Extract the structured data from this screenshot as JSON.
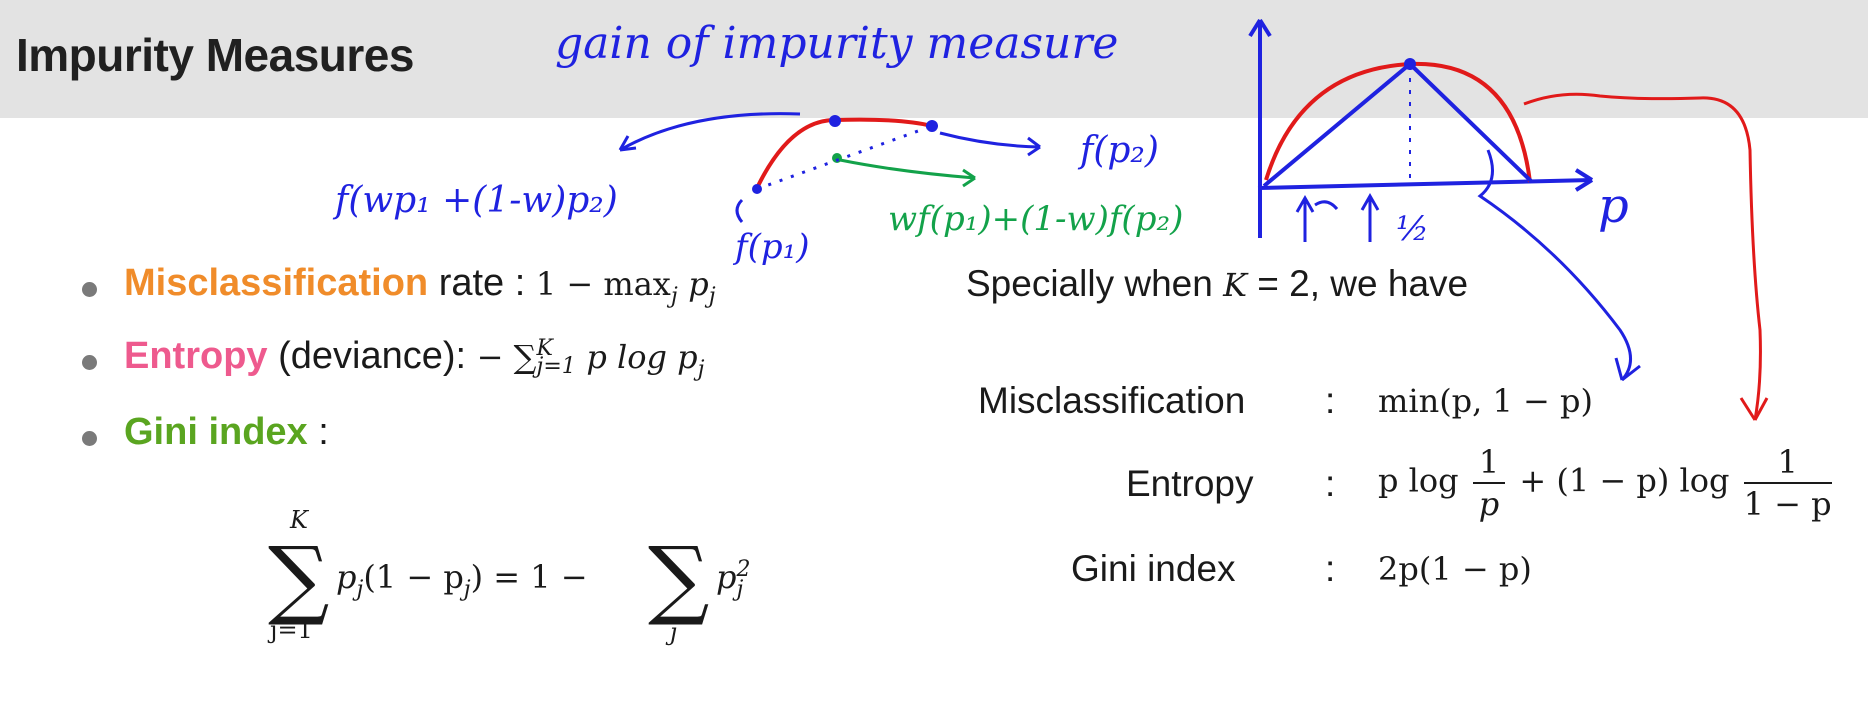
{
  "slide": {
    "title": "Impurity Measures"
  },
  "bullets": [
    {
      "keyword": "Misclassification",
      "keyword_color": "#f08c2a",
      "text": "rate :",
      "formula_prefix": "1 − max",
      "formula_sub": "j",
      "formula_tail": "p",
      "formula_tail_sub": "j"
    },
    {
      "keyword": "Entropy",
      "keyword_color": "#ee5a8e",
      "text": "(deviance):",
      "formula_prefix": "− ∑",
      "formula_sub": "j=1",
      "formula_sup": "K",
      "formula_tail": "p log p",
      "formula_tail_sub": "j"
    },
    {
      "keyword": "Gini index",
      "keyword_color": "#5aa520",
      "text": ":"
    }
  ],
  "gini_formula": {
    "sum_symbol": "∑",
    "upper": "K",
    "lower": "j=1",
    "body": "p",
    "body_sub": "j",
    "middle": "(1 − p",
    "middle_sub": "j",
    "equals": ") = 1 −",
    "sum2_lower": "j",
    "tail": "p",
    "tail_sub": "j",
    "tail_sup": "2"
  },
  "special_case": {
    "intro": "Specially when",
    "var": "K",
    "eq": " = 2, we have",
    "rows": [
      {
        "label": "Misclassification",
        "colon": ":",
        "formula": "min(p, 1 − p)"
      },
      {
        "label": "Entropy",
        "colon": ":"
      },
      {
        "label": "Gini index",
        "colon": ":",
        "formula": "2p(1 − p)"
      }
    ],
    "entropy_formula": {
      "a": "p log",
      "num1": "1",
      "den1": "p",
      "b": "+ (1 − p) log",
      "num2": "1",
      "den2": "1 − p"
    }
  },
  "annotations": {
    "blue_title": "gain of impurity measure",
    "blue_left": "f(wp₁ +(1-w)p₂)",
    "blue_right": "f(p₂)",
    "blue_bottom": "f(p₁)",
    "green": "wf(p₁)+(1-w)f(p₂)",
    "half": "½",
    "p_axis": "p",
    "colors": {
      "blue": "#1f22e0",
      "red": "#e11a1a",
      "green": "#13a24a"
    }
  }
}
